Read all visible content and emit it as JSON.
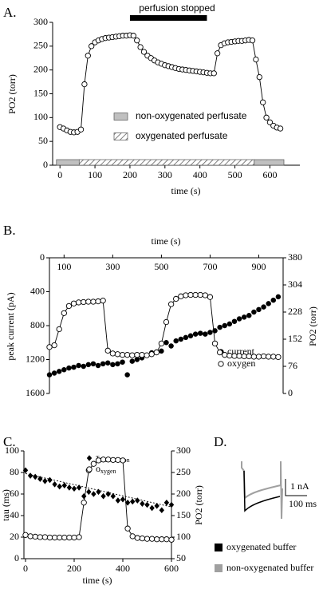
{
  "chart_data": [
    {
      "type": "line",
      "label": "A.",
      "x_label": "time (s)",
      "y_label": "PO2 (torr)",
      "xlim": [
        -10,
        640
      ],
      "xticks": [
        0,
        100,
        200,
        300,
        400,
        500,
        600
      ],
      "ylim": [
        0,
        300
      ],
      "yticks": [
        0,
        50,
        100,
        150,
        200,
        250,
        300
      ],
      "annotation": {
        "text": "perfusion stopped",
        "x": [
          200,
          420
        ]
      },
      "legend_items": [
        {
          "name": "non-oxygenated perfusate",
          "style": "solid",
          "color": "#c0c0c0"
        },
        {
          "name": "oxygenated perfusate",
          "style": "hatch",
          "color": "#555555"
        }
      ],
      "bands": [
        {
          "style": "solid",
          "x": [
            -10,
            55
          ]
        },
        {
          "style": "hatch",
          "x": [
            55,
            555
          ]
        },
        {
          "style": "solid",
          "x": [
            555,
            640
          ]
        }
      ],
      "x": [
        0,
        10,
        20,
        30,
        40,
        50,
        60,
        70,
        80,
        90,
        100,
        110,
        120,
        130,
        140,
        150,
        160,
        170,
        180,
        190,
        200,
        210,
        220,
        230,
        240,
        250,
        260,
        270,
        280,
        290,
        300,
        310,
        320,
        330,
        340,
        350,
        360,
        370,
        380,
        390,
        400,
        410,
        420,
        430,
        440,
        450,
        460,
        470,
        480,
        490,
        500,
        510,
        520,
        530,
        540,
        550,
        560,
        570,
        580,
        590,
        600,
        610,
        620,
        630
      ],
      "series": [
        {
          "color": "#000000",
          "marker": "circle-open",
          "line": true,
          "values": [
            80,
            77,
            73,
            70,
            69,
            70,
            75,
            170,
            230,
            250,
            258,
            262,
            265,
            267,
            268,
            269,
            270,
            271,
            272,
            272,
            273,
            272,
            262,
            248,
            238,
            230,
            225,
            220,
            216,
            213,
            210,
            208,
            206,
            204,
            202,
            201,
            200,
            199,
            198,
            197,
            196,
            195,
            194,
            193,
            193,
            235,
            252,
            256,
            258,
            259,
            260,
            261,
            261,
            262,
            263,
            262,
            222,
            185,
            132,
            100,
            90,
            83,
            79,
            77
          ]
        }
      ]
    },
    {
      "type": "line",
      "label": "B.",
      "x_label": "time (s)",
      "y_label": "peak current (pA)",
      "y2_label": "PO2 (torr)",
      "x_axis_position": "top",
      "xlim": [
        40,
        1000
      ],
      "xticks": [
        100,
        300,
        500,
        700,
        900
      ],
      "ylim": [
        1600,
        0
      ],
      "yticks": [
        0,
        400,
        800,
        1200,
        1600
      ],
      "y2lim": [
        0,
        380
      ],
      "y2ticks": [
        0,
        76,
        152,
        228,
        304,
        380
      ],
      "x": [
        40,
        60,
        80,
        100,
        120,
        140,
        160,
        180,
        200,
        220,
        240,
        260,
        280,
        300,
        320,
        340,
        360,
        380,
        400,
        420,
        440,
        460,
        480,
        500,
        520,
        540,
        560,
        580,
        600,
        620,
        640,
        660,
        680,
        700,
        720,
        740,
        760,
        780,
        800,
        820,
        840,
        860,
        880,
        900,
        920,
        940,
        960,
        980
      ],
      "series": [
        {
          "name": "current",
          "color": "#000000",
          "marker": "circle-filled",
          "line": false,
          "values": [
            1380,
            1360,
            1340,
            1320,
            1300,
            1290,
            1270,
            1280,
            1260,
            1250,
            1270,
            1250,
            1240,
            1260,
            1250,
            1230,
            1380,
            1220,
            1200,
            1180,
            1150,
            1120,
            1110,
            1100,
            1000,
            1040,
            980,
            960,
            940,
            920,
            900,
            890,
            900,
            880,
            860,
            820,
            800,
            780,
            750,
            720,
            700,
            680,
            640,
            610,
            580,
            540,
            500,
            460
          ]
        },
        {
          "name": "oxygen",
          "color": "#000000",
          "marker": "circle-open",
          "line": true,
          "axis": "y2",
          "values": [
            130,
            135,
            180,
            225,
            245,
            252,
            255,
            256,
            257,
            257,
            258,
            260,
            120,
            112,
            110,
            108,
            108,
            107,
            108,
            108,
            107,
            110,
            115,
            140,
            200,
            250,
            265,
            272,
            275,
            276,
            276,
            276,
            275,
            270,
            140,
            115,
            108,
            106,
            105,
            105,
            104,
            104,
            103,
            103,
            104,
            103,
            103,
            102
          ]
        }
      ]
    },
    {
      "type": "line",
      "label": "C.",
      "x_label": "time (s)",
      "y_label": "tau (ms)",
      "y2_label": "PO2 (torr)",
      "xlim": [
        0,
        600
      ],
      "xticks": [
        0,
        200,
        400,
        600
      ],
      "ylim": [
        0,
        100
      ],
      "yticks": [
        0,
        20,
        40,
        60,
        80,
        100
      ],
      "y2lim": [
        50,
        300
      ],
      "y2ticks": [
        50,
        100,
        150,
        200,
        250,
        300
      ],
      "trendline": {
        "x": [
          0,
          600
        ],
        "values": [
          79,
          48
        ]
      },
      "x": [
        0,
        20,
        40,
        60,
        80,
        100,
        120,
        140,
        160,
        180,
        200,
        220,
        240,
        260,
        280,
        300,
        320,
        340,
        360,
        380,
        400,
        420,
        440,
        460,
        480,
        500,
        520,
        540,
        560,
        580,
        600
      ],
      "series": [
        {
          "name": "τinactivation",
          "color": "#000000",
          "marker": "diamond",
          "line": false,
          "values": [
            82,
            77,
            76,
            74,
            72,
            73,
            69,
            67,
            68,
            66,
            65,
            66,
            58,
            62,
            60,
            62,
            58,
            60,
            58,
            54,
            55,
            52,
            53,
            54,
            51,
            50,
            47,
            49,
            45,
            52,
            50
          ]
        },
        {
          "name": "oxygen",
          "color": "#000000",
          "marker": "circle-open",
          "line": true,
          "axis": "y2",
          "values": [
            105,
            102,
            101,
            100,
            100,
            99,
            99,
            99,
            99,
            99,
            99,
            100,
            180,
            255,
            270,
            278,
            280,
            280,
            279,
            279,
            278,
            120,
            102,
            98,
            97,
            96,
            96,
            95,
            95,
            95,
            94
          ]
        }
      ]
    },
    {
      "type": "trace",
      "label": "D.",
      "scale_y": "1 nA",
      "scale_x": "100 ms",
      "series": [
        {
          "name": "oxygenated buffer",
          "color": "#000000"
        },
        {
          "name": "non-oxygenated buffer",
          "color": "#a0a0a0"
        }
      ]
    }
  ]
}
